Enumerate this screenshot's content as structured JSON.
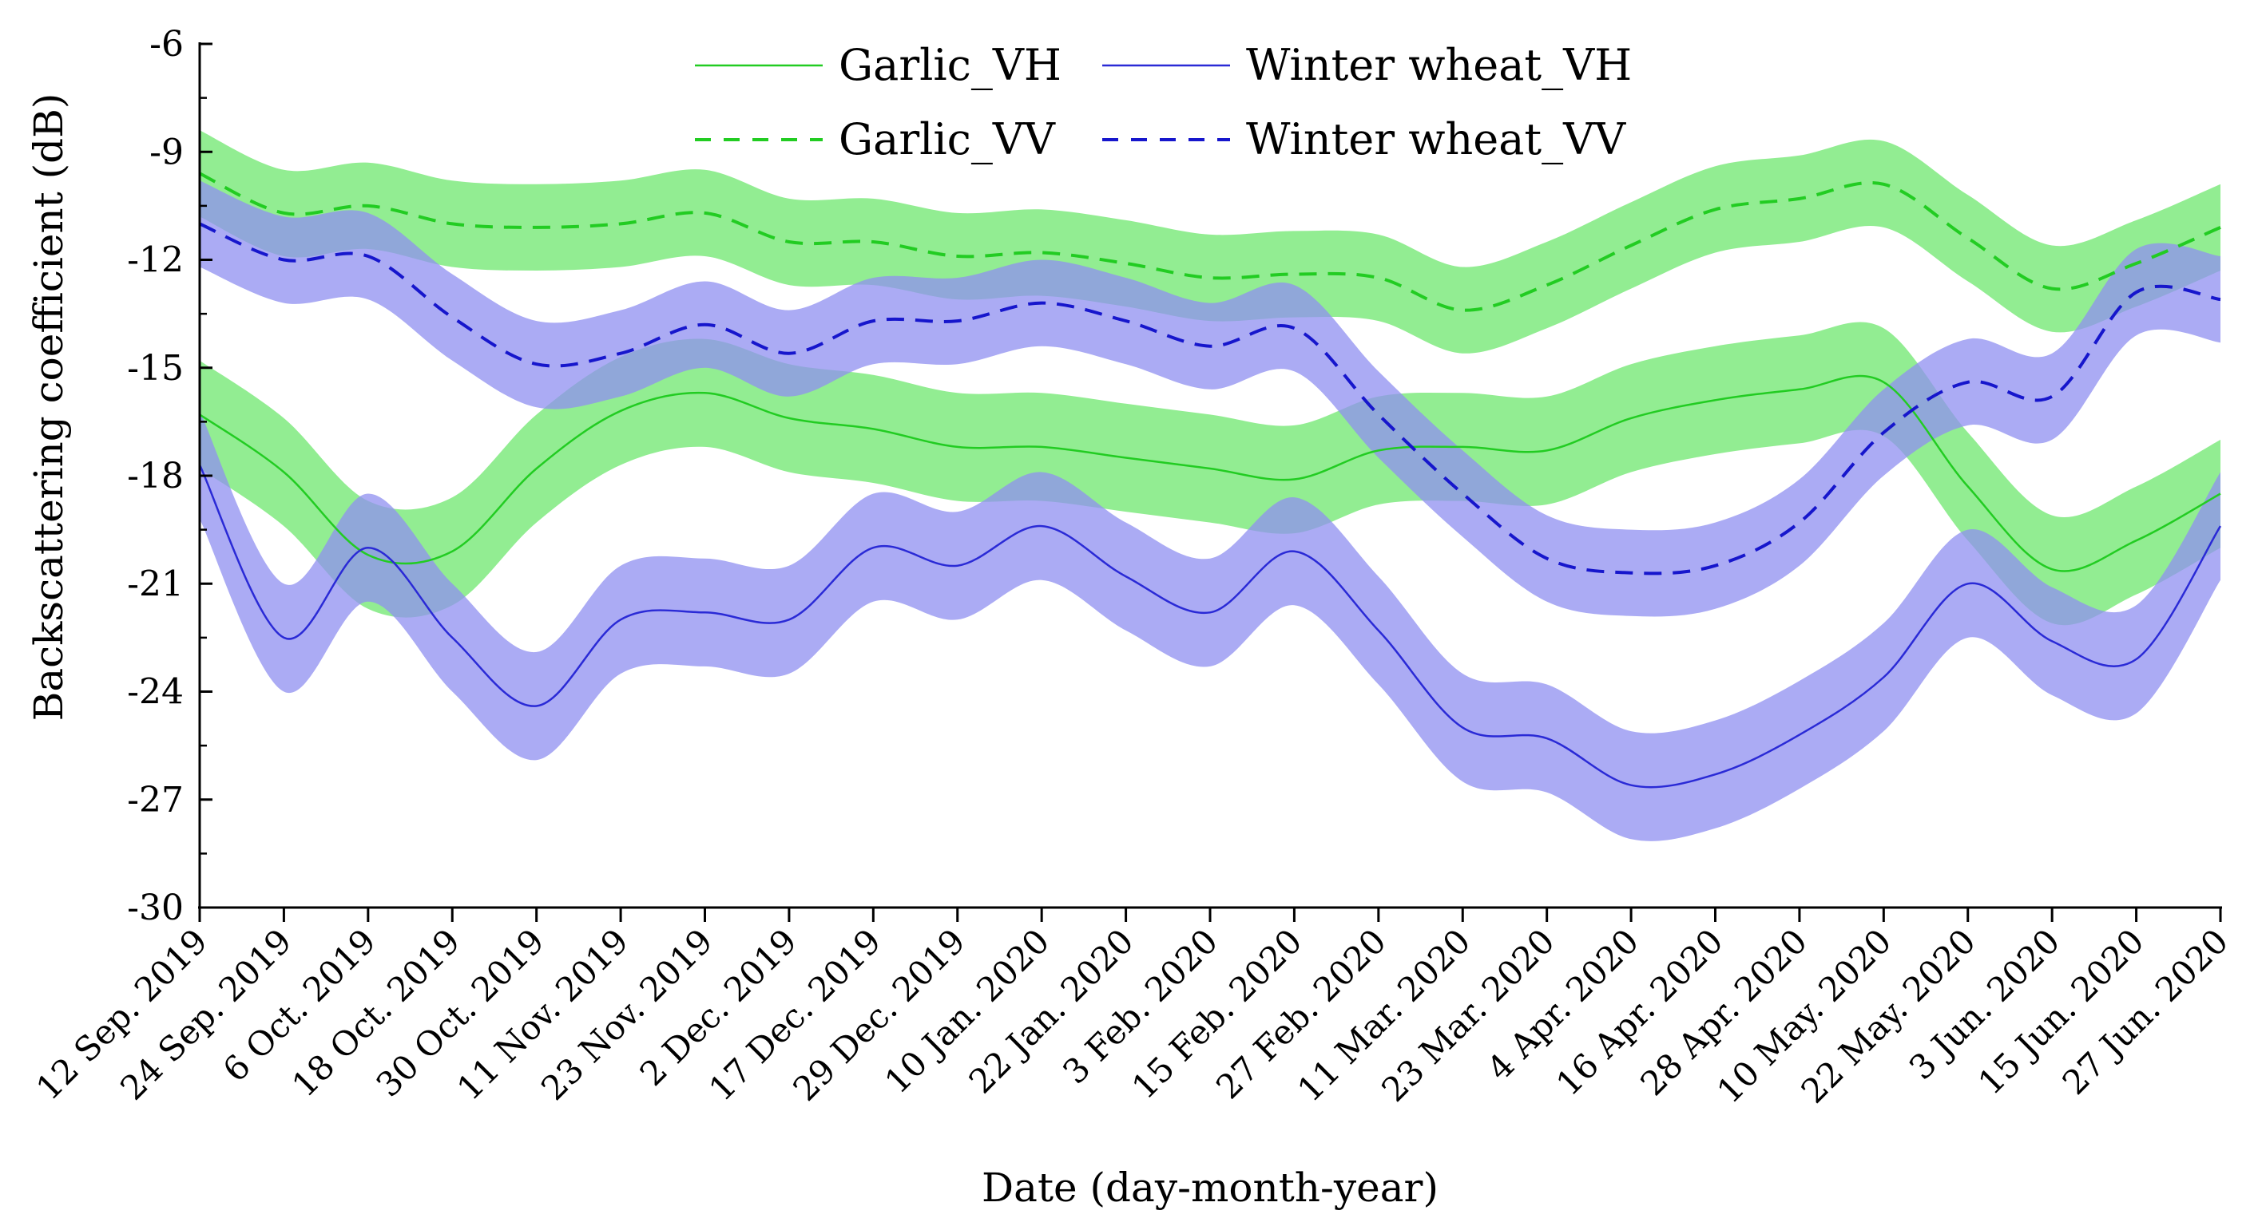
{
  "chart_data": {
    "type": "line",
    "title": "",
    "xlabel": "Date (day-month-year)",
    "ylabel": "Backscattering coefficient (dB)",
    "ylim": [
      -30,
      -6
    ],
    "yticks": [
      -6,
      -9,
      -12,
      -15,
      -18,
      -21,
      -24,
      -27,
      -30
    ],
    "ytick_labels": [
      "-6",
      "-9",
      "-12",
      "-15",
      "-18",
      "-21",
      "-24",
      "-27",
      "-30"
    ],
    "categories": [
      "12 Sep. 2019",
      "24 Sep. 2019",
      "6 Oct. 2019",
      "18 Oct. 2019",
      "30 Oct. 2019",
      "11 Nov. 2019",
      "23 Nov. 2019",
      "2 Dec. 2019",
      "17 Dec. 2019",
      "29 Dec. 2019",
      "10 Jan. 2020",
      "22 Jan. 2020",
      "3 Feb. 2020",
      "15 Feb. 2020",
      "27 Feb. 2020",
      "11 Mar. 2020",
      "23 Mar. 2020",
      "4 Apr. 2020",
      "16 Apr. 2020",
      "28 Apr. 2020",
      "10 May. 2020",
      "22 May. 2020",
      "3 Jun. 2020",
      "15 Jun. 2020",
      "27 Jun. 2020"
    ],
    "grid": false,
    "legend_position": "top-center",
    "series": [
      {
        "name": "Garlic_VH",
        "style": "solid",
        "color": "#22cc22",
        "band_color": "#7fea7f",
        "values": [
          -16.3,
          -17.9,
          -20.2,
          -20.1,
          -17.8,
          -16.2,
          -15.7,
          -16.4,
          -16.7,
          -17.2,
          -17.2,
          -17.5,
          -17.8,
          -18.1,
          -17.3,
          -17.2,
          -17.3,
          -16.4,
          -15.9,
          -15.6,
          -15.4,
          -18.3,
          -20.6,
          -19.8,
          -18.5
        ],
        "upper": [
          -14.8,
          -16.4,
          -18.7,
          -18.6,
          -16.3,
          -14.7,
          -14.2,
          -14.9,
          -15.2,
          -15.7,
          -15.7,
          -16.0,
          -16.3,
          -16.6,
          -15.8,
          -15.7,
          -15.8,
          -14.9,
          -14.4,
          -14.1,
          -13.9,
          -16.8,
          -19.1,
          -18.3,
          -17.0
        ],
        "lower": [
          -17.8,
          -19.4,
          -21.7,
          -21.6,
          -19.3,
          -17.7,
          -17.2,
          -17.9,
          -18.2,
          -18.7,
          -18.7,
          -19.0,
          -19.3,
          -19.6,
          -18.8,
          -18.7,
          -18.8,
          -17.9,
          -17.4,
          -17.1,
          -16.9,
          -19.8,
          -22.1,
          -21.3,
          -20.0
        ]
      },
      {
        "name": "Garlic_VV",
        "style": "dashed",
        "color": "#22cc22",
        "band_color": "#7fea7f",
        "values": [
          -9.6,
          -10.7,
          -10.5,
          -11.0,
          -11.1,
          -11.0,
          -10.7,
          -11.5,
          -11.5,
          -11.9,
          -11.8,
          -12.1,
          -12.5,
          -12.4,
          -12.5,
          -13.4,
          -12.7,
          -11.6,
          -10.6,
          -10.3,
          -9.9,
          -11.4,
          -12.8,
          -12.1,
          -11.1
        ],
        "upper": [
          -8.4,
          -9.5,
          -9.3,
          -9.8,
          -9.9,
          -9.8,
          -9.5,
          -10.3,
          -10.3,
          -10.7,
          -10.6,
          -10.9,
          -11.3,
          -11.2,
          -11.3,
          -12.2,
          -11.5,
          -10.4,
          -9.4,
          -9.1,
          -8.7,
          -10.2,
          -11.6,
          -10.9,
          -9.9
        ],
        "lower": [
          -10.8,
          -11.9,
          -11.7,
          -12.2,
          -12.3,
          -12.2,
          -11.9,
          -12.7,
          -12.7,
          -13.1,
          -13.0,
          -13.3,
          -13.7,
          -13.6,
          -13.7,
          -14.6,
          -13.9,
          -12.8,
          -11.8,
          -11.5,
          -11.1,
          -12.6,
          -14.0,
          -13.3,
          -12.3
        ]
      },
      {
        "name": "Winter wheat_VH",
        "style": "solid",
        "color": "#2a2ad6",
        "band_color": "#8f8ff0",
        "values": [
          -17.7,
          -22.5,
          -20.0,
          -22.5,
          -24.4,
          -22.0,
          -21.8,
          -22.0,
          -20.0,
          -20.5,
          -19.4,
          -20.8,
          -21.8,
          -20.1,
          -22.3,
          -25.0,
          -25.3,
          -26.6,
          -26.3,
          -25.2,
          -23.6,
          -21.0,
          -22.6,
          -23.1,
          -19.4
        ],
        "upper": [
          -16.2,
          -21.0,
          -18.5,
          -21.0,
          -22.9,
          -20.5,
          -20.3,
          -20.5,
          -18.5,
          -19.0,
          -17.9,
          -19.3,
          -20.3,
          -18.6,
          -20.8,
          -23.5,
          -23.8,
          -25.1,
          -24.8,
          -23.7,
          -22.1,
          -19.5,
          -21.1,
          -21.6,
          -17.9
        ],
        "lower": [
          -19.2,
          -24.0,
          -21.5,
          -24.0,
          -25.9,
          -23.5,
          -23.3,
          -23.5,
          -21.5,
          -22.0,
          -20.9,
          -22.3,
          -23.3,
          -21.6,
          -23.8,
          -26.5,
          -26.8,
          -28.1,
          -27.8,
          -26.7,
          -25.1,
          -22.5,
          -24.1,
          -24.6,
          -20.9
        ]
      },
      {
        "name": "Winter wheat_VV",
        "style": "dashed",
        "color": "#1616cc",
        "band_color": "#8f8ff0",
        "values": [
          -11.0,
          -12.0,
          -11.9,
          -13.6,
          -14.9,
          -14.6,
          -13.8,
          -14.6,
          -13.7,
          -13.7,
          -13.2,
          -13.7,
          -14.4,
          -13.9,
          -16.3,
          -18.5,
          -20.3,
          -20.7,
          -20.5,
          -19.3,
          -16.8,
          -15.4,
          -15.8,
          -12.9,
          -13.1
        ],
        "upper": [
          -9.8,
          -10.8,
          -10.7,
          -12.4,
          -13.7,
          -13.4,
          -12.6,
          -13.4,
          -12.5,
          -12.5,
          -12.0,
          -12.5,
          -13.2,
          -12.7,
          -15.1,
          -17.3,
          -19.1,
          -19.5,
          -19.3,
          -18.1,
          -15.6,
          -14.2,
          -14.6,
          -11.7,
          -11.9
        ],
        "lower": [
          -12.2,
          -13.2,
          -13.1,
          -14.8,
          -16.1,
          -15.8,
          -15.0,
          -15.8,
          -14.9,
          -14.9,
          -14.4,
          -14.9,
          -15.6,
          -15.1,
          -17.5,
          -19.7,
          -21.5,
          -21.9,
          -21.7,
          -20.5,
          -18.0,
          -16.6,
          -17.0,
          -14.1,
          -14.3
        ]
      }
    ]
  }
}
